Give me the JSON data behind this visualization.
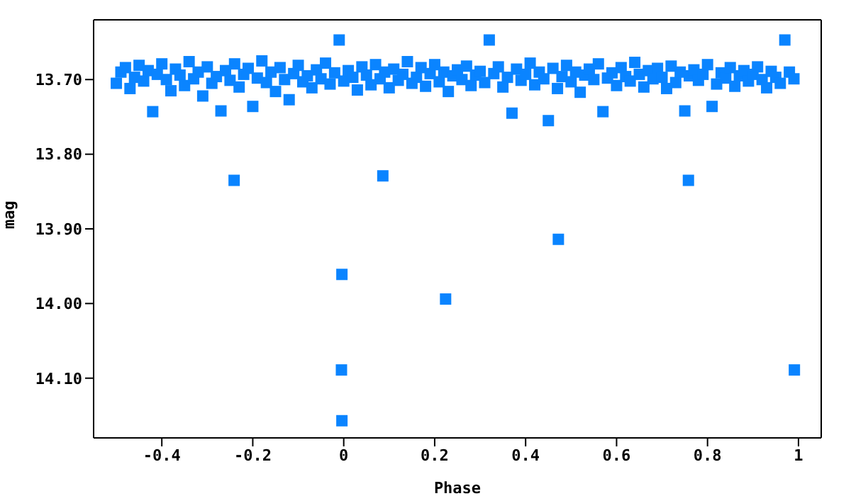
{
  "chart_data": {
    "type": "scatter",
    "xlabel": "Phase",
    "ylabel": "mag",
    "marker": "square",
    "grid": false,
    "legend": false,
    "xlim": [
      -0.55,
      1.05
    ],
    "xticks": [
      -0.4,
      -0.2,
      0,
      0.2,
      0.4,
      0.6,
      0.8,
      1
    ],
    "ylim": [
      14.18,
      13.62
    ],
    "yticks": [
      {
        "value": 13.7,
        "label": "13.70"
      },
      {
        "value": 13.8,
        "label": "13.80"
      },
      {
        "value": 13.9,
        "label": "13.90"
      },
      {
        "value": 14.0,
        "label": "14.00"
      },
      {
        "value": 14.1,
        "label": "14.10"
      }
    ],
    "series": [
      {
        "color": "#0a84ff",
        "x": [
          -0.5,
          -0.49,
          -0.48,
          -0.47,
          -0.46,
          -0.45,
          -0.44,
          -0.43,
          -0.42,
          -0.41,
          -0.4,
          -0.39,
          -0.38,
          -0.37,
          -0.36,
          -0.35,
          -0.34,
          -0.33,
          -0.32,
          -0.31,
          -0.3,
          -0.29,
          -0.28,
          -0.27,
          -0.26,
          -0.25,
          -0.24,
          -0.23,
          -0.22,
          -0.21,
          -0.2,
          -0.19,
          -0.18,
          -0.17,
          -0.16,
          -0.15,
          -0.14,
          -0.13,
          -0.12,
          -0.11,
          -0.1,
          -0.09,
          -0.08,
          -0.07,
          -0.06,
          -0.05,
          -0.04,
          -0.03,
          -0.02,
          -0.01,
          0,
          0.01,
          0.02,
          0.03,
          0.04,
          0.05,
          0.06,
          0.07,
          0.08,
          0.09,
          0.1,
          0.11,
          0.12,
          0.13,
          0.14,
          0.15,
          0.16,
          0.17,
          0.18,
          0.19,
          0.2,
          0.21,
          0.22,
          0.23,
          0.24,
          0.25,
          0.26,
          0.27,
          0.28,
          0.29,
          0.3,
          0.31,
          0.32,
          0.33,
          0.34,
          0.35,
          0.36,
          0.37,
          0.38,
          0.39,
          0.4,
          0.41,
          0.42,
          0.43,
          0.44,
          0.45,
          0.46,
          0.47,
          0.48,
          0.49,
          0.5,
          0.51,
          0.52,
          0.53,
          0.54,
          0.55,
          0.56,
          0.57,
          0.58,
          0.59,
          0.6,
          0.61,
          0.62,
          0.63,
          0.64,
          0.65,
          0.66,
          0.67,
          0.68,
          0.69,
          0.7,
          0.71,
          0.72,
          0.73,
          0.74,
          0.75,
          0.76,
          0.77,
          0.78,
          0.79,
          0.8,
          0.81,
          0.82,
          0.83,
          0.84,
          0.85,
          0.86,
          0.87,
          0.88,
          0.89,
          0.9,
          0.91,
          0.92,
          0.93,
          0.94,
          0.95,
          0.96,
          0.97,
          0.98,
          0.99,
          -0.241,
          0.086,
          0.758,
          0.472,
          -0.004,
          0.224,
          -0.005,
          -0.004,
          0.991
        ],
        "values": [
          13.705,
          13.69,
          13.684,
          13.712,
          13.697,
          13.681,
          13.702,
          13.688,
          13.743,
          13.693,
          13.679,
          13.7,
          13.715,
          13.686,
          13.694,
          13.708,
          13.676,
          13.699,
          13.69,
          13.722,
          13.683,
          13.705,
          13.696,
          13.742,
          13.688,
          13.701,
          13.679,
          13.71,
          13.693,
          13.685,
          13.736,
          13.698,
          13.675,
          13.704,
          13.69,
          13.716,
          13.684,
          13.7,
          13.727,
          13.692,
          13.681,
          13.703,
          13.695,
          13.711,
          13.687,
          13.699,
          13.678,
          13.706,
          13.691,
          13.647,
          13.702,
          13.688,
          13.697,
          13.714,
          13.683,
          13.694,
          13.707,
          13.68,
          13.699,
          13.69,
          13.711,
          13.686,
          13.701,
          13.693,
          13.676,
          13.705,
          13.697,
          13.684,
          13.709,
          13.692,
          13.68,
          13.703,
          13.69,
          13.716,
          13.695,
          13.687,
          13.7,
          13.682,
          13.708,
          13.694,
          13.689,
          13.704,
          13.647,
          13.692,
          13.683,
          13.71,
          13.697,
          13.745,
          13.686,
          13.701,
          13.693,
          13.678,
          13.707,
          13.69,
          13.699,
          13.755,
          13.685,
          13.712,
          13.696,
          13.681,
          13.703,
          13.69,
          13.717,
          13.694,
          13.686,
          13.7,
          13.679,
          13.743,
          13.698,
          13.691,
          13.708,
          13.684,
          13.696,
          13.702,
          13.677,
          13.693,
          13.71,
          13.688,
          13.699,
          13.685,
          13.697,
          13.712,
          13.682,
          13.704,
          13.69,
          13.742,
          13.695,
          13.687,
          13.701,
          13.693,
          13.68,
          13.736,
          13.706,
          13.691,
          13.698,
          13.684,
          13.709,
          13.695,
          13.688,
          13.702,
          13.693,
          13.683,
          13.7,
          13.711,
          13.689,
          13.697,
          13.705,
          13.647,
          13.69,
          13.699,
          13.835,
          13.829,
          13.835,
          13.914,
          13.961,
          13.994,
          14.089,
          14.157,
          14.089
        ]
      }
    ]
  }
}
